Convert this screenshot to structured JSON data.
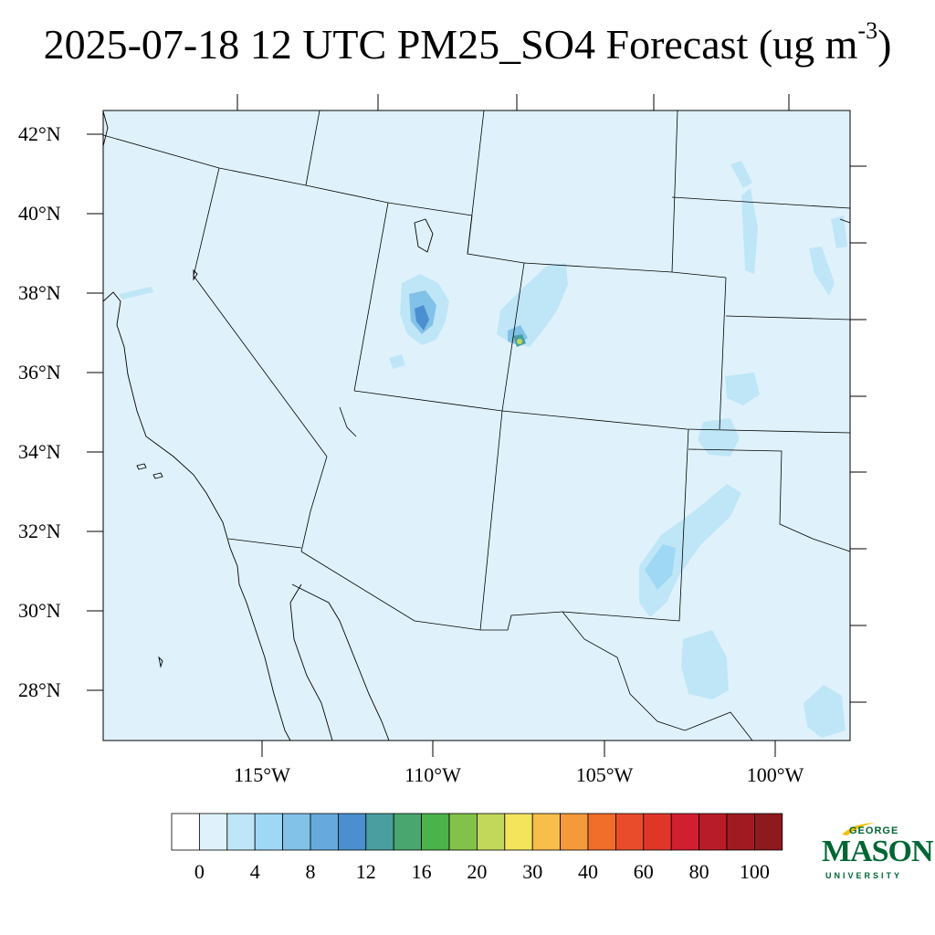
{
  "title": {
    "main": "2025-07-18 12 UTC PM25_SO4 Forecast (ug m",
    "sup": "-3",
    "close": ")"
  },
  "lat_labels": [
    "42°N",
    "40°N",
    "38°N",
    "36°N",
    "34°N",
    "32°N",
    "30°N",
    "28°N"
  ],
  "lon_labels": [
    "115°W",
    "110°W",
    "105°W",
    "100°W"
  ],
  "colorbar": {
    "labels": [
      "0",
      "4",
      "8",
      "12",
      "16",
      "20",
      "30",
      "40",
      "60",
      "80",
      "100"
    ],
    "colors": [
      "#ffffff",
      "#dff2fb",
      "#bfe6f7",
      "#9fd8f5",
      "#82c2e8",
      "#66aadd",
      "#4a8fcf",
      "#4a9ea0",
      "#48a66e",
      "#4ab44a",
      "#82c24a",
      "#c2d85a",
      "#f4e45c",
      "#f7be4a",
      "#f59a3a",
      "#f06d2a",
      "#e84c2a",
      "#e0362a",
      "#d02030",
      "#b81c28",
      "#a01a22",
      "#8c1a1e"
    ]
  },
  "map": {
    "background_color": "#dff2fb",
    "light_so4_color": "#bfe6f7",
    "medium_so4_color": "#82c2e8",
    "high_so4_color": "#4a8fcf",
    "peak_so4_colors": [
      "#4a9ea0",
      "#c2d85a"
    ]
  },
  "logo": {
    "top": "GEORGE",
    "main": "MASON",
    "bottom": "UNIVERSITY",
    "color": "#006633",
    "accent": "#f2c200"
  }
}
